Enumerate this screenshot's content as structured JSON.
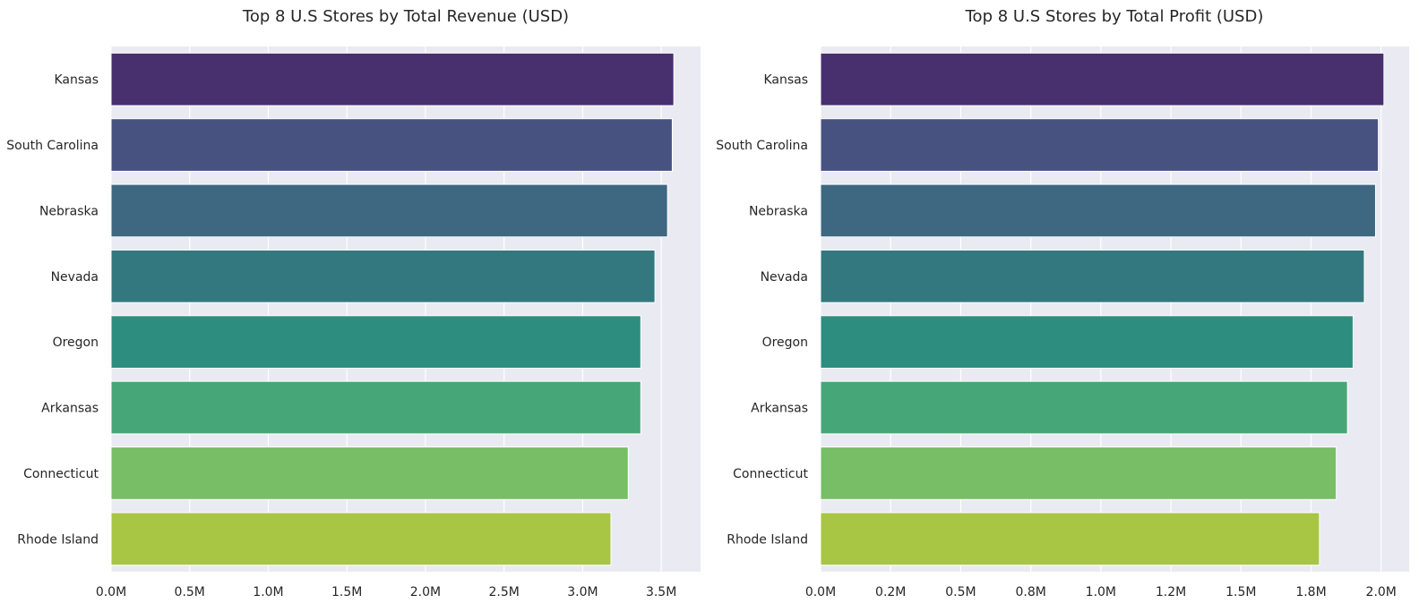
{
  "chart_data": [
    {
      "type": "bar",
      "orientation": "horizontal",
      "title": "Top 8 U.S Stores by Total Revenue (USD)",
      "xlabel": "",
      "ylabel": "",
      "categories": [
        "Kansas",
        "South Carolina",
        "Nebraska",
        "Nevada",
        "Oregon",
        "Arkansas",
        "Connecticut",
        "Rhode Island"
      ],
      "values": [
        3580000,
        3570000,
        3540000,
        3460000,
        3370000,
        3370000,
        3290000,
        3180000
      ],
      "xlim": [
        0,
        3750000
      ],
      "xticks": [
        0,
        500000,
        1000000,
        1500000,
        2000000,
        2500000,
        3000000,
        3500000
      ],
      "xtick_labels": [
        "0.0M",
        "0.5M",
        "1.0M",
        "1.5M",
        "2.0M",
        "2.5M",
        "3.0M",
        "3.5M"
      ],
      "grid": true,
      "colors": [
        "#482f6e",
        "#475281",
        "#3e6781",
        "#34787f",
        "#2d8e7f",
        "#47a677",
        "#77be67",
        "#a8c643"
      ]
    },
    {
      "type": "bar",
      "orientation": "horizontal",
      "title": "Top 8 U.S Stores by Total Profit (USD)",
      "xlabel": "",
      "ylabel": "",
      "categories": [
        "Kansas",
        "South Carolina",
        "Nebraska",
        "Nevada",
        "Oregon",
        "Arkansas",
        "Connecticut",
        "Rhode Island"
      ],
      "values": [
        2010000,
        1990000,
        1980000,
        1940000,
        1900000,
        1880000,
        1840000,
        1780000
      ],
      "xlim": [
        0,
        2100000
      ],
      "xticks": [
        0,
        250000,
        500000,
        750000,
        1000000,
        1250000,
        1500000,
        1750000,
        2000000
      ],
      "xtick_labels": [
        "0.0M",
        "0.2M",
        "0.5M",
        "0.8M",
        "1.0M",
        "1.2M",
        "1.5M",
        "1.8M",
        "2.0M"
      ],
      "grid": true,
      "colors": [
        "#482f6e",
        "#475281",
        "#3e6781",
        "#34787f",
        "#2d8e7f",
        "#47a677",
        "#77be67",
        "#a8c643"
      ]
    }
  ]
}
